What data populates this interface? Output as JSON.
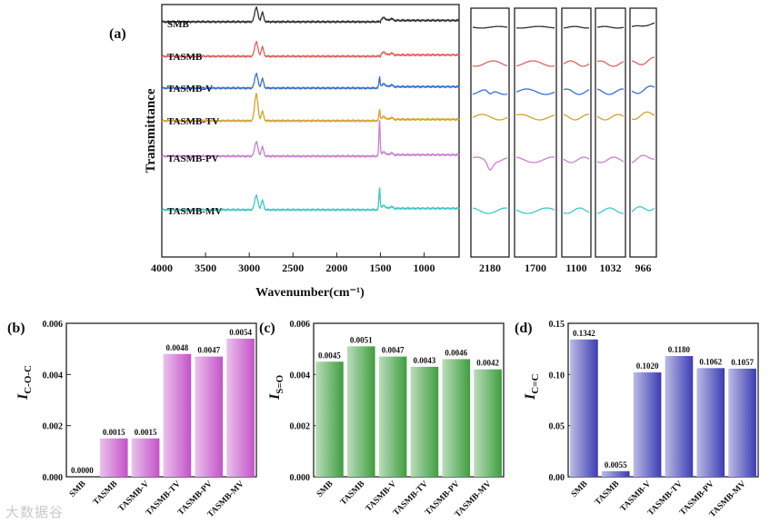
{
  "watermark": "大数据谷",
  "chart_data": [
    {
      "type": "line",
      "panel": "(a)",
      "xlabel": "Wavenumber(cm⁻¹)",
      "ylabel": "Transmittance",
      "xlim": [
        4000,
        600
      ],
      "x_ticks": [
        4000,
        3500,
        3000,
        2500,
        2000,
        1500,
        1000
      ],
      "series": [
        {
          "name": "SMB",
          "color": "#303030"
        },
        {
          "name": "TASMB",
          "color": "#e06060"
        },
        {
          "name": "TASMB-V",
          "color": "#3a6fcf"
        },
        {
          "name": "TASMB-TV",
          "color": "#d2a22a"
        },
        {
          "name": "TASMB-PV",
          "color": "#c97fd0"
        },
        {
          "name": "TASMB-MV",
          "color": "#3fc7c9"
        }
      ],
      "zoom_windows": [
        "2180",
        "1700",
        "1100",
        "1032",
        "966"
      ]
    },
    {
      "type": "bar",
      "panel": "(b)",
      "ylabel": "I",
      "ylabel_sub": "C-O-C",
      "categories": [
        "SMB",
        "TASMB",
        "TASMB-V",
        "TASMB-TV",
        "TASMB-PV",
        "TASMB-MV"
      ],
      "values": [
        0.0,
        0.0015,
        0.0015,
        0.0048,
        0.0047,
        0.0054
      ],
      "labels": [
        "0.0000",
        "0.0015",
        "0.0015",
        "0.0048",
        "0.0047",
        "0.0054"
      ],
      "ylim": [
        0,
        0.006
      ],
      "yticks": [
        "0.000",
        "0.002",
        "0.004",
        "0.006"
      ],
      "color": "#c452c8"
    },
    {
      "type": "bar",
      "panel": "(c)",
      "ylabel": "I",
      "ylabel_sub": "S=O",
      "categories": [
        "SMB",
        "TASMB",
        "TASMB-V",
        "TASMB-TV",
        "TASMB-PV",
        "TASMB-MV"
      ],
      "values": [
        0.0045,
        0.0051,
        0.0047,
        0.0043,
        0.0046,
        0.0042
      ],
      "labels": [
        "0.0045",
        "0.0051",
        "0.0047",
        "0.0043",
        "0.0046",
        "0.0042"
      ],
      "ylim": [
        0,
        0.006
      ],
      "yticks": [
        "0.000",
        "0.002",
        "0.004",
        "0.006"
      ],
      "color": "#3e9e3e"
    },
    {
      "type": "bar",
      "panel": "(d)",
      "ylabel": "I",
      "ylabel_sub": "C=C",
      "categories": [
        "SMB",
        "TASMB",
        "TASMB-V",
        "TASMB-TV",
        "TASMB-PV",
        "TASMB-MV"
      ],
      "values": [
        0.1342,
        0.0055,
        0.102,
        0.118,
        0.1062,
        0.1057
      ],
      "labels": [
        "0.1342",
        "0.0055",
        "0.1020",
        "0.1180",
        "0.1062",
        "0.1057"
      ],
      "ylim": [
        0,
        0.15
      ],
      "yticks": [
        "0.00",
        "0.05",
        "0.10",
        "0.15"
      ],
      "color": "#3c3cb4"
    }
  ]
}
